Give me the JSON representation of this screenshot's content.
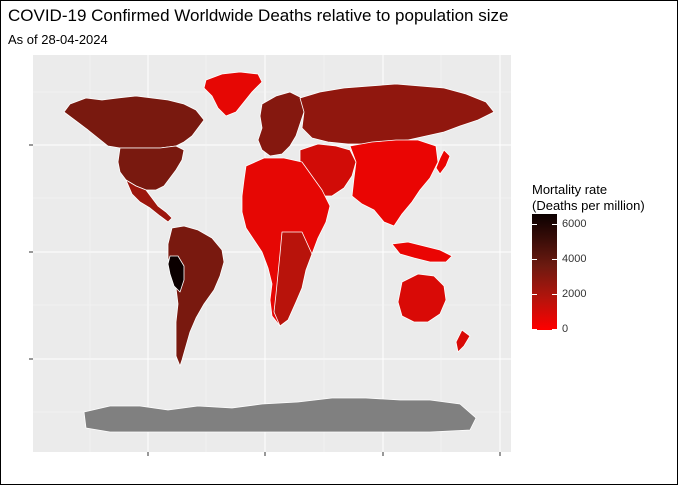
{
  "title": "COVID-19 Confirmed Worldwide Deaths relative to population size",
  "subtitle": "As of 28-04-2024",
  "legend": {
    "title_line1": "Mortality rate",
    "title_line2": "(Deaths per million)",
    "ticks": [
      "6000",
      "4000",
      "2000",
      "0"
    ],
    "min": 0,
    "max": 6500
  },
  "colors": {
    "panel": "#ebebeb",
    "grid": "#ffffff",
    "no_data": "#808080",
    "low": "#ff0000",
    "high": "#0b0000",
    "border": "#ffffff"
  },
  "map_data": {
    "type": "choropleth",
    "metric": "Deaths per million",
    "regions": [
      {
        "name": "North America",
        "rate": 3300
      },
      {
        "name": "Greenland",
        "rate": 600
      },
      {
        "name": "Central America",
        "rate": 2400
      },
      {
        "name": "South America",
        "rate": 3300
      },
      {
        "name": "Peru",
        "rate": 6500
      },
      {
        "name": "Europe",
        "rate": 3000
      },
      {
        "name": "Russia",
        "rate": 2700
      },
      {
        "name": "Africa",
        "rate": 600
      },
      {
        "name": "South Africa",
        "rate": 1700
      },
      {
        "name": "Middle East",
        "rate": 1100
      },
      {
        "name": "Asia",
        "rate": 500
      },
      {
        "name": "Australia",
        "rate": 900
      },
      {
        "name": "Antarctica",
        "rate": null
      }
    ]
  }
}
